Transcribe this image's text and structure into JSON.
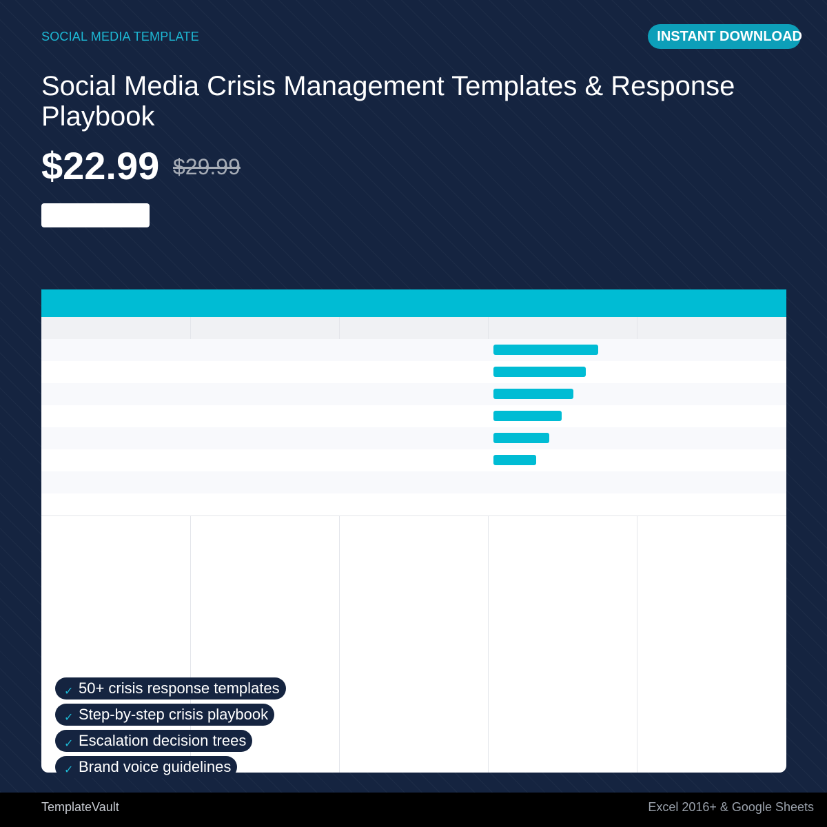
{
  "header": {
    "eyebrow": "SOCIAL MEDIA TEMPLATE",
    "badge": "INSTANT DOWNLOAD",
    "title": "Social Media Crisis Management Templates & Response Playbook"
  },
  "pricing": {
    "price": "$22.99",
    "original_price": "$29.99",
    "cta_label": ""
  },
  "preview": {
    "accent_color": "#00bcd4",
    "bar_levels": [
      1.0,
      0.88,
      0.76,
      0.65,
      0.53,
      0.41
    ]
  },
  "features": [
    {
      "icon": "check-icon",
      "label": "50+ crisis response templates"
    },
    {
      "icon": "check-icon",
      "label": "Step-by-step crisis playbook"
    },
    {
      "icon": "check-icon",
      "label": "Escalation decision trees"
    },
    {
      "icon": "check-icon",
      "label": "Brand voice guidelines"
    }
  ],
  "footer": {
    "brand": "TemplateVault",
    "compatibility": "Excel 2016+ & Google Sheets"
  },
  "colors": {
    "background": "#152440",
    "accent": "#1db8d4",
    "badge": "#0d9fb9"
  }
}
